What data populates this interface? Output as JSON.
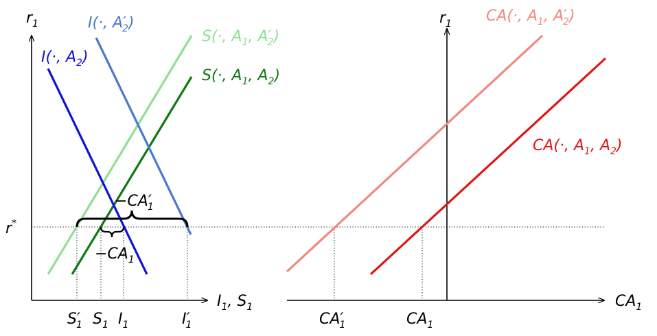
{
  "colors": {
    "axis": "#000000",
    "investment_base": "#1010dd",
    "investment_shifted": "#4a78d0",
    "saving_base": "#117711",
    "saving_shifted": "#90e090",
    "ca_base": "#e01515",
    "ca_shifted": "#f08a80",
    "guide": "#000000"
  },
  "left_panel": {
    "y_axis": {
      "label": "r",
      "sub": "1"
    },
    "x_axis": {
      "label": "I",
      "sub1": "1",
      "sep": ", S",
      "sub2": "1"
    },
    "rate_label": {
      "base": "r",
      "sup": "*"
    },
    "curve_I_A2": {
      "pre": "I(·, A",
      "sub": "2",
      "post": ")"
    },
    "curve_I_A2p": {
      "pre": "I(·, A",
      "prime": "′",
      "sub": "2",
      "post": ")"
    },
    "curve_S_A2p": {
      "pre": "S(·, A",
      "sub1": "1",
      "mid": ", A",
      "prime": "′",
      "sub2": "2",
      "post": ")"
    },
    "curve_S_A2": {
      "pre": "S(·, A",
      "sub1": "1",
      "mid": ", A",
      "sub2": "2",
      "post": ")"
    },
    "brace_CA1p": {
      "pre": "−CA",
      "prime": "′",
      "sub": "1"
    },
    "brace_CA1": {
      "pre": "−CA",
      "sub": "1"
    },
    "tick_S1p": {
      "base": "S",
      "prime": "′",
      "sub": "1"
    },
    "tick_S1": {
      "base": "S",
      "sub": "1"
    },
    "tick_I1": {
      "base": "I",
      "sub": "1"
    },
    "tick_I1p": {
      "base": "I",
      "prime": "′",
      "sub": "1"
    }
  },
  "right_panel": {
    "y_axis": {
      "label": "r",
      "sub": "1"
    },
    "x_axis": {
      "label": "CA",
      "sub": "1"
    },
    "curve_CA_A2p": {
      "pre": "CA(·, A",
      "sub1": "1",
      "mid": ", A",
      "prime": "′",
      "sub2": "2",
      "post": ")"
    },
    "curve_CA_A2": {
      "pre": "CA(·, A",
      "sub1": "1",
      "mid": ", A",
      "sub2": "2",
      "post": ")"
    },
    "tick_CA1p": {
      "base": "CA",
      "prime": "′",
      "sub": "1"
    },
    "tick_CA1": {
      "base": "CA",
      "sub": "1"
    }
  }
}
